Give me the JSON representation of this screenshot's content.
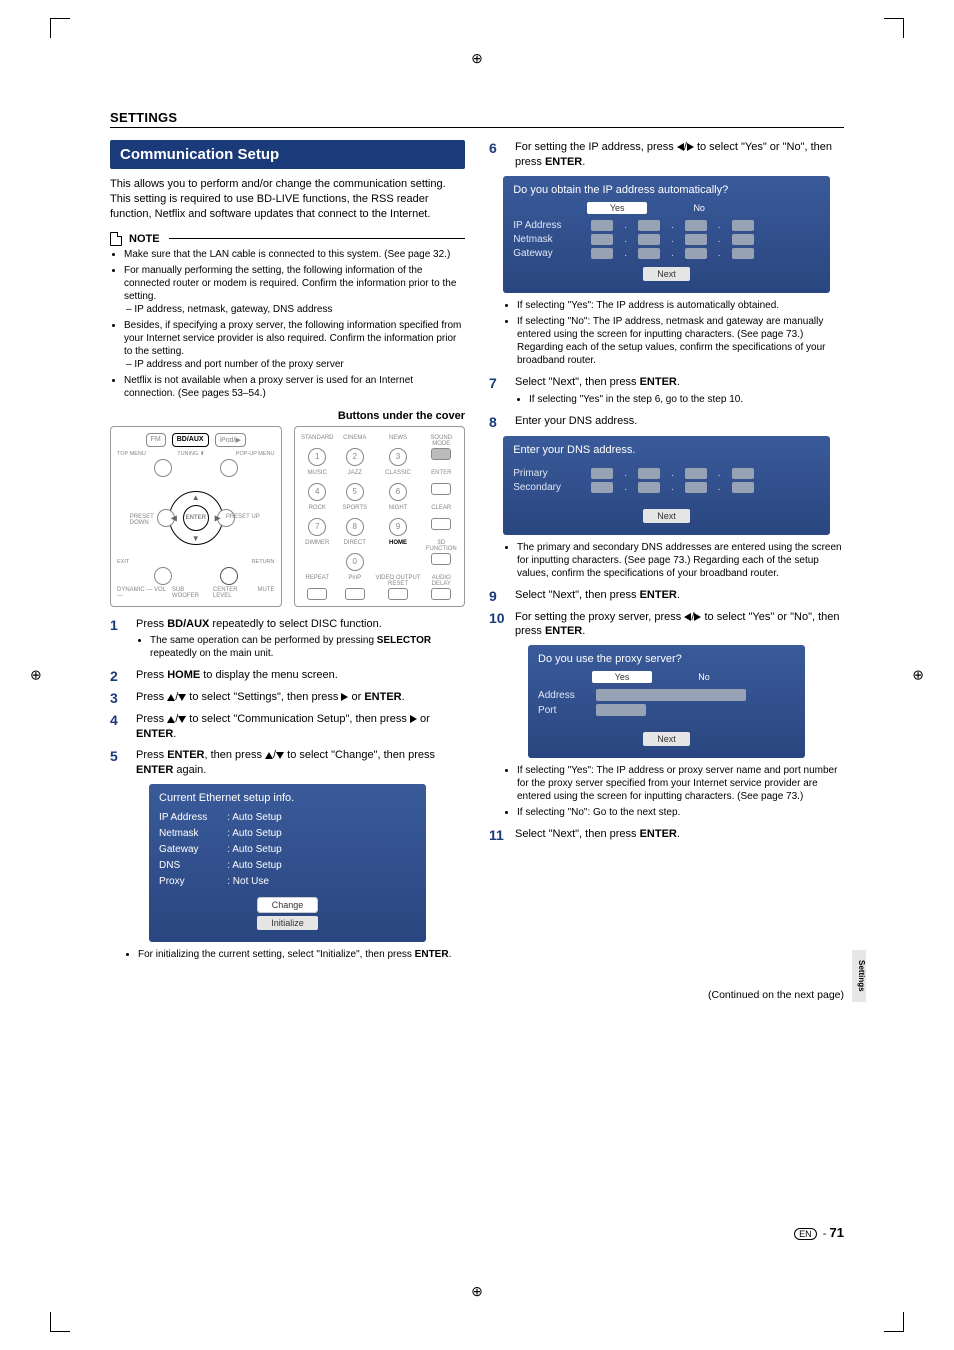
{
  "meta": {
    "page_number": "71",
    "lang_badge": "EN",
    "side_tab": "Settings",
    "continued": "(Continued on the next page)"
  },
  "heading": "SETTINGS",
  "title": "Communication Setup",
  "intro": "This allows you to perform and/or change the communication setting. This setting is required to use BD-LIVE functions, the RSS reader function, Netflix and software updates that connect to the Internet.",
  "note_label": "NOTE",
  "notes": [
    "Make sure that the LAN cable is connected to this system. (See page 32.)",
    "For manually performing the setting, the following information of the connected router or modem is required. Confirm the information prior to the setting.",
    "Besides, if specifying a proxy server, the following information specified from your Internet service provider is also required. Confirm the information prior to the setting.",
    "Netflix is not available when a proxy server is used for an Internet connection. (See pages 53–54.)"
  ],
  "note_sub1": "IP address, netmask, gateway, DNS address",
  "note_sub2": "IP address and port number of the proxy server",
  "buttons_under": "Buttons under the cover",
  "remote_left": {
    "row1": [
      "FM",
      "BD/AUX",
      "iPod/▶"
    ],
    "row1_sub": [
      "TOP MENU",
      "TUNING ⬍",
      "POP-UP MENU"
    ],
    "preset_l": "PRESET\nDOWN",
    "preset_r": "PRESET\nUP",
    "exit": "EXIT",
    "return": "RETURN",
    "enter": "ENTER",
    "bottom": [
      "DYNAMIC\n— VOL —",
      "SUB\nWOOFER",
      "CENTER\nLEVEL",
      "MUTE"
    ]
  },
  "remote_right": {
    "grid": [
      [
        "STANDARD",
        "CINEMA",
        "NEWS",
        "SOUND\nMODE"
      ],
      [
        "MUSIC",
        "JAZZ",
        "CLASSIC",
        "ENTER"
      ],
      [
        "ROCK",
        "SPORTS",
        "NIGHT",
        "CLEAR"
      ],
      [
        "DIMMER",
        "DIRECT",
        "HOME",
        "3D\nFUNCTION"
      ],
      [
        "REPEAT",
        "PinP",
        "VIDEO OUTPUT\nRESET",
        "AUDIO\nDELAY"
      ]
    ],
    "nums": [
      "1",
      "2",
      "3",
      "",
      "4",
      "5",
      "6",
      "",
      "7",
      "8",
      "9",
      "",
      "",
      "0",
      "",
      ""
    ]
  },
  "steps_left": [
    {
      "n": "1",
      "t": "Press <b>BD/AUX</b> repeatedly to select DISC function.",
      "sub": [
        "The same operation can be performed by pressing <b>SELECTOR</b> repeatedly on the main unit."
      ]
    },
    {
      "n": "2",
      "t": "Press <b>HOME</b> to display the menu screen."
    },
    {
      "n": "3",
      "t": "Press {up}/{down} to select \"Settings\", then press {right} or <b>ENTER</b>."
    },
    {
      "n": "4",
      "t": "Press {up}/{down} to select \"Communication Setup\", then press {right} or <b>ENTER</b>."
    },
    {
      "n": "5",
      "t": "Press <b>ENTER</b>, then press {up}/{down} to select \"Change\", then press <b>ENTER</b> again."
    }
  ],
  "osd_ethernet": {
    "title": "Current Ethernet setup info.",
    "rows": [
      [
        "IP Address",
        ": Auto Setup"
      ],
      [
        "Netmask",
        ": Auto Setup"
      ],
      [
        "Gateway",
        ": Auto Setup"
      ],
      [
        "DNS",
        ": Auto Setup"
      ],
      [
        "Proxy",
        ": Not Use"
      ]
    ],
    "btn1": "Change",
    "btn2": "Initialize"
  },
  "step5_sub": "For initializing the current setting, select \"Initialize\", then press <b>ENTER</b>.",
  "steps_right": [
    {
      "n": "6",
      "t": "For setting the IP address, press {left}/{right} to select \"Yes\" or \"No\", then press <b>ENTER</b>."
    }
  ],
  "osd_ip": {
    "title": "Do you obtain the IP address automatically?",
    "yes": "Yes",
    "no": "No",
    "rows": [
      "IP Address",
      "Netmask",
      "Gateway"
    ],
    "next": "Next"
  },
  "step6_sub": [
    "If selecting \"Yes\": The IP address is automatically obtained.",
    "If selecting \"No\": The IP address, netmask and gateway are manually entered using the screen for inputting characters. (See page 73.) Regarding each of the setup values, confirm the specifications of your broadband router."
  ],
  "step7": {
    "n": "7",
    "t": "Select \"Next\", then press <b>ENTER</b>.",
    "sub": [
      "If selecting \"Yes\" in the step 6, go to the step 10."
    ]
  },
  "step8": {
    "n": "8",
    "t": "Enter your DNS address."
  },
  "osd_dns": {
    "title": "Enter your DNS address.",
    "rows": [
      "Primary",
      "Secondary"
    ],
    "next": "Next"
  },
  "step8_sub": [
    "The primary and secondary DNS addresses are entered using the screen for inputting characters. (See page 73.) Regarding each of the setup values, confirm the specifications of your broadband router."
  ],
  "step9": {
    "n": "9",
    "t": "Select \"Next\", then press <b>ENTER</b>."
  },
  "step10": {
    "n": "10",
    "t": "For setting the proxy server, press {left}/{right} to select \"Yes\" or \"No\", then press <b>ENTER</b>."
  },
  "osd_proxy": {
    "title": "Do you use the proxy server?",
    "yes": "Yes",
    "no": "No",
    "rows": [
      "Address",
      "Port"
    ],
    "next": "Next"
  },
  "step10_sub": [
    "If selecting \"Yes\": The IP address or proxy server name and port number for the proxy server specified from your Internet service provider are entered using the screen for inputting characters. (See page 73.)",
    "If selecting \"No\": Go to the next step."
  ],
  "step11": {
    "n": "11",
    "t": "Select \"Next\", then press <b>ENTER</b>."
  }
}
